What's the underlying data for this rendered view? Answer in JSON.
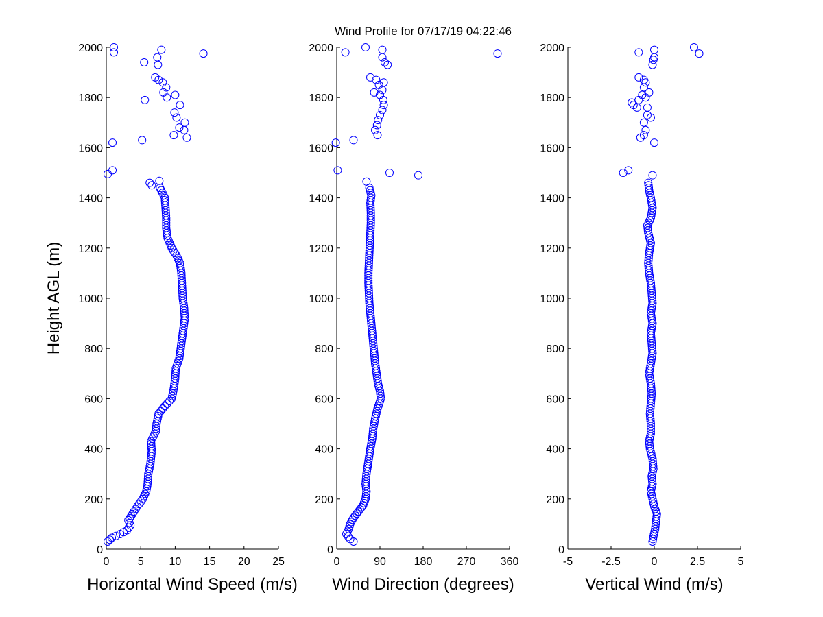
{
  "chart_data": {
    "title": "Wind Profile for  07/17/19 04:22:46",
    "marker_color": "#0000ff",
    "panels": [
      {
        "type": "scatter",
        "xlabel": "Horizontal Wind Speed (m/s)",
        "ylabel": "Height AGL (m)",
        "xlim": [
          0,
          25
        ],
        "ylim": [
          0,
          2000
        ],
        "xticks": [
          0,
          5,
          10,
          15,
          20,
          25
        ],
        "xtick_labels": [
          "0",
          "5",
          "10",
          "15",
          "20",
          "25"
        ],
        "yticks": [
          0,
          200,
          400,
          600,
          800,
          1000,
          1200,
          1400,
          1600,
          1800,
          2000
        ],
        "ytick_labels": [
          "0",
          "200",
          "400",
          "600",
          "800",
          "1000",
          "1200",
          "1400",
          "1600",
          "1800",
          "2000"
        ],
        "profile": [
          [
            0.2,
            30
          ],
          [
            0.8,
            45
          ],
          [
            2,
            60
          ],
          [
            3,
            75
          ],
          [
            3.5,
            95
          ],
          [
            3.2,
            115
          ],
          [
            3.8,
            140
          ],
          [
            4.5,
            170
          ],
          [
            5.3,
            200
          ],
          [
            5.8,
            230
          ],
          [
            6,
            260
          ],
          [
            6.1,
            300
          ],
          [
            6.4,
            340
          ],
          [
            6.6,
            390
          ],
          [
            6.5,
            430
          ],
          [
            7.2,
            470
          ],
          [
            7.3,
            500
          ],
          [
            7.6,
            540
          ],
          [
            8.5,
            570
          ],
          [
            9.5,
            600
          ],
          [
            9.8,
            640
          ],
          [
            10,
            680
          ],
          [
            10.1,
            720
          ],
          [
            10.6,
            760
          ],
          [
            10.8,
            800
          ],
          [
            11,
            840
          ],
          [
            11.2,
            880
          ],
          [
            11.4,
            920
          ],
          [
            11.3,
            960
          ],
          [
            11.1,
            1000
          ],
          [
            11,
            1050
          ],
          [
            10.9,
            1100
          ],
          [
            10.7,
            1140
          ],
          [
            10.2,
            1170
          ],
          [
            9.5,
            1200
          ],
          [
            8.9,
            1240
          ],
          [
            8.7,
            1280
          ],
          [
            8.7,
            1320
          ],
          [
            8.6,
            1360
          ],
          [
            8.5,
            1400
          ],
          [
            7.8,
            1440
          ]
        ],
        "scattered": [
          [
            0.9,
            1510
          ],
          [
            0.2,
            1495
          ],
          [
            7.7,
            1468
          ],
          [
            6.3,
            1460
          ],
          [
            6.6,
            1450
          ],
          [
            0.9,
            1620
          ],
          [
            5.2,
            1630
          ],
          [
            9.8,
            1650
          ],
          [
            11.7,
            1640
          ],
          [
            11.3,
            1670
          ],
          [
            10.6,
            1680
          ],
          [
            11.4,
            1700
          ],
          [
            10.2,
            1720
          ],
          [
            9.9,
            1740
          ],
          [
            10.7,
            1770
          ],
          [
            5.6,
            1790
          ],
          [
            10,
            1810
          ],
          [
            8.8,
            1800
          ],
          [
            8.3,
            1820
          ],
          [
            8.7,
            1840
          ],
          [
            8.2,
            1860
          ],
          [
            7.6,
            1870
          ],
          [
            7.1,
            1880
          ],
          [
            5.5,
            1940
          ],
          [
            7.5,
            1930
          ],
          [
            7.4,
            1960
          ],
          [
            14.1,
            1975
          ],
          [
            1.1,
            1980
          ],
          [
            8,
            1990
          ],
          [
            1.1,
            2000
          ]
        ]
      },
      {
        "type": "scatter",
        "xlabel": "Wind Direction (degrees)",
        "ylabel": "",
        "xlim": [
          0,
          360
        ],
        "ylim": [
          0,
          2000
        ],
        "xticks": [
          0,
          90,
          180,
          270,
          360
        ],
        "xtick_labels": [
          "0",
          "90",
          "180",
          "270",
          "360"
        ],
        "yticks": [
          0,
          200,
          400,
          600,
          800,
          1000,
          1200,
          1400,
          1600,
          1800,
          2000
        ],
        "ytick_labels": [
          "0",
          "200",
          "400",
          "600",
          "800",
          "1000",
          "1200",
          "1400",
          "1600",
          "1800",
          "2000"
        ],
        "profile": [
          [
            28,
            40
          ],
          [
            20,
            60
          ],
          [
            25,
            80
          ],
          [
            28,
            100
          ],
          [
            35,
            125
          ],
          [
            45,
            150
          ],
          [
            55,
            175
          ],
          [
            60,
            200
          ],
          [
            62,
            230
          ],
          [
            60,
            260
          ],
          [
            62,
            300
          ],
          [
            66,
            350
          ],
          [
            70,
            400
          ],
          [
            74,
            440
          ],
          [
            76,
            480
          ],
          [
            80,
            520
          ],
          [
            85,
            560
          ],
          [
            92,
            600
          ],
          [
            90,
            630
          ],
          [
            86,
            660
          ],
          [
            83,
            700
          ],
          [
            80,
            740
          ],
          [
            78,
            780
          ],
          [
            76,
            820
          ],
          [
            74,
            860
          ],
          [
            72,
            900
          ],
          [
            70,
            940
          ],
          [
            68,
            980
          ],
          [
            67,
            1020
          ],
          [
            66,
            1060
          ],
          [
            66,
            1100
          ],
          [
            67,
            1140
          ],
          [
            68,
            1180
          ],
          [
            69,
            1220
          ],
          [
            70,
            1260
          ],
          [
            71,
            1300
          ],
          [
            71,
            1340
          ],
          [
            70,
            1380
          ],
          [
            72,
            1410
          ],
          [
            68,
            1440
          ]
        ],
        "scattered": [
          [
            35,
            30
          ],
          [
            2,
            1510
          ],
          [
            110,
            1500
          ],
          [
            170,
            1490
          ],
          [
            62,
            1465
          ],
          [
            -2,
            1620
          ],
          [
            35,
            1630
          ],
          [
            85,
            1650
          ],
          [
            80,
            1670
          ],
          [
            84,
            1690
          ],
          [
            86,
            1710
          ],
          [
            90,
            1730
          ],
          [
            95,
            1750
          ],
          [
            98,
            1770
          ],
          [
            97,
            1790
          ],
          [
            90,
            1810
          ],
          [
            78,
            1820
          ],
          [
            95,
            1830
          ],
          [
            88,
            1850
          ],
          [
            98,
            1860
          ],
          [
            82,
            1870
          ],
          [
            70,
            1880
          ],
          [
            106,
            1930
          ],
          [
            100,
            1940
          ],
          [
            95,
            1960
          ],
          [
            335,
            1975
          ],
          [
            18,
            1980
          ],
          [
            95,
            1990
          ],
          [
            60,
            2000
          ]
        ]
      },
      {
        "type": "scatter",
        "xlabel": "Vertical Wind (m/s)",
        "ylabel": "",
        "xlim": [
          -5,
          5
        ],
        "ylim": [
          0,
          2000
        ],
        "xticks": [
          -5,
          -2.5,
          0,
          2.5,
          5
        ],
        "xtick_labels": [
          "-5",
          "-2.5",
          "0",
          "2.5",
          "5"
        ],
        "yticks": [
          0,
          200,
          400,
          600,
          800,
          1000,
          1200,
          1400,
          1600,
          1800,
          2000
        ],
        "ytick_labels": [
          "0",
          "200",
          "400",
          "600",
          "800",
          "1000",
          "1200",
          "1400",
          "1600",
          "1800",
          "2000"
        ],
        "profile": [
          [
            -0.1,
            30
          ],
          [
            -0.05,
            50
          ],
          [
            0.05,
            80
          ],
          [
            0.1,
            110
          ],
          [
            0.15,
            140
          ],
          [
            0,
            170
          ],
          [
            -0.1,
            200
          ],
          [
            -0.2,
            230
          ],
          [
            -0.1,
            260
          ],
          [
            -0.15,
            290
          ],
          [
            -0.05,
            320
          ],
          [
            -0.1,
            360
          ],
          [
            -0.25,
            400
          ],
          [
            -0.3,
            430
          ],
          [
            -0.2,
            460
          ],
          [
            -0.2,
            500
          ],
          [
            -0.25,
            540
          ],
          [
            -0.2,
            580
          ],
          [
            -0.15,
            620
          ],
          [
            -0.2,
            660
          ],
          [
            -0.3,
            700
          ],
          [
            -0.2,
            740
          ],
          [
            -0.1,
            780
          ],
          [
            -0.15,
            820
          ],
          [
            -0.2,
            860
          ],
          [
            -0.1,
            900
          ],
          [
            -0.2,
            940
          ],
          [
            -0.1,
            980
          ],
          [
            -0.15,
            1020
          ],
          [
            -0.2,
            1060
          ],
          [
            -0.3,
            1100
          ],
          [
            -0.35,
            1140
          ],
          [
            -0.3,
            1180
          ],
          [
            -0.2,
            1220
          ],
          [
            -0.35,
            1260
          ],
          [
            -0.4,
            1290
          ],
          [
            -0.2,
            1320
          ],
          [
            -0.1,
            1360
          ],
          [
            -0.2,
            1400
          ],
          [
            -0.3,
            1430
          ],
          [
            -0.35,
            1460
          ]
        ],
        "scattered": [
          [
            -1.8,
            1500
          ],
          [
            -1.5,
            1510
          ],
          [
            -0.1,
            1490
          ],
          [
            -0.8,
            1640
          ],
          [
            -0.6,
            1650
          ],
          [
            0,
            1620
          ],
          [
            -0.5,
            1670
          ],
          [
            -0.6,
            1700
          ],
          [
            -0.2,
            1720
          ],
          [
            -0.4,
            1730
          ],
          [
            -0.4,
            1760
          ],
          [
            -1,
            1760
          ],
          [
            -1.2,
            1770
          ],
          [
            -1.3,
            1780
          ],
          [
            -0.5,
            1800
          ],
          [
            -0.9,
            1790
          ],
          [
            -0.7,
            1810
          ],
          [
            -0.3,
            1820
          ],
          [
            -0.6,
            1840
          ],
          [
            -0.5,
            1860
          ],
          [
            -0.6,
            1870
          ],
          [
            -0.9,
            1880
          ],
          [
            -0.1,
            1930
          ],
          [
            -0.05,
            1950
          ],
          [
            0,
            1960
          ],
          [
            2.6,
            1975
          ],
          [
            -0.9,
            1980
          ],
          [
            0,
            1990
          ],
          [
            2.3,
            2000
          ]
        ]
      }
    ]
  }
}
